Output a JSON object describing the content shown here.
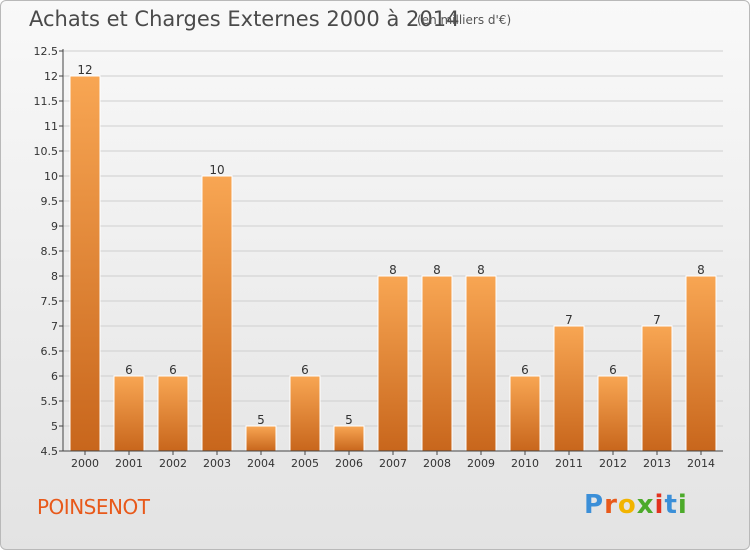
{
  "header": {
    "title": "Achats et Charges Externes 2000 à 2014",
    "unit": "(en milliers d'€)"
  },
  "footer": {
    "commune": "POINSENOT",
    "logo": {
      "letters": [
        "P",
        "r",
        "o",
        "x",
        "i",
        "t",
        "i"
      ],
      "colors": [
        "#3b8fd8",
        "#e8591a",
        "#f2b400",
        "#4caa2a",
        "#e2321f",
        "#3b8fd8",
        "#4caa2a"
      ]
    }
  },
  "colors": {
    "bar_light": "#f8a653",
    "bar_dark": "#c8661c",
    "axis": "#444444",
    "grid": "#cfcfcf",
    "text": "#333333"
  },
  "chart_data": {
    "type": "bar",
    "title": "Achats et Charges Externes 2000 à 2014",
    "subtitle": "(en milliers d'€)",
    "categories": [
      "2000",
      "2001",
      "2002",
      "2003",
      "2004",
      "2005",
      "2006",
      "2007",
      "2008",
      "2009",
      "2010",
      "2011",
      "2012",
      "2013",
      "2014"
    ],
    "values": [
      12,
      6,
      6,
      10,
      5,
      6,
      5,
      8,
      8,
      8,
      6,
      7,
      6,
      7,
      8
    ],
    "data_labels": [
      "12",
      "6",
      "6",
      "10",
      "5",
      "6",
      "5",
      "8",
      "8",
      "8",
      "6",
      "7",
      "6",
      "7",
      "8"
    ],
    "ylim": [
      4.5,
      12.5
    ],
    "yticks": [
      4.5,
      5,
      5.5,
      6,
      6.5,
      7,
      7.5,
      8,
      8.5,
      9,
      9.5,
      10,
      10.5,
      11,
      11.5,
      12,
      12.5
    ],
    "ytick_labels": [
      "4.5",
      "5",
      "5.5",
      "6",
      "6.5",
      "7",
      "7.5",
      "8",
      "8.5",
      "9",
      "9.5",
      "10",
      "10.5",
      "11",
      "11.5",
      "12",
      "12.5"
    ],
    "xlabel": "",
    "ylabel": "",
    "grid": true
  }
}
